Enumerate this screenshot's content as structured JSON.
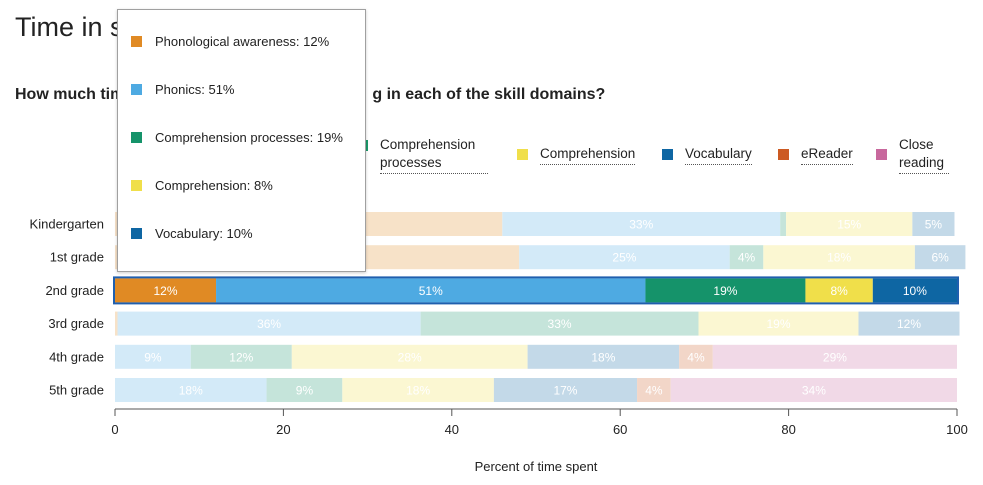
{
  "page": {
    "title": "Time in s",
    "question": "How much tim",
    "question_tail": "g in each of the skill domains?"
  },
  "legend": [
    {
      "label": "Comprehension processes",
      "color": "#1b9a6b"
    },
    {
      "label": "Comprehension",
      "color": "#f0df4a"
    },
    {
      "label": "Vocabulary",
      "color": "#0e66a3"
    },
    {
      "label": "eReader",
      "color": "#cc5a22"
    },
    {
      "label": "Close reading",
      "color": "#c8689d"
    }
  ],
  "tooltip": {
    "items": [
      {
        "label": "Phonological awareness: 12%",
        "color": "#e08a24"
      },
      {
        "label": "Phonics: 51%",
        "color": "#4eaae2"
      },
      {
        "label": "Comprehension processes: 19%",
        "color": "#15936a"
      },
      {
        "label": "Comprehension: 8%",
        "color": "#f0df4a"
      },
      {
        "label": "Vocabulary: 10%",
        "color": "#0e66a3"
      }
    ]
  },
  "chart_data": {
    "type": "bar",
    "orientation": "horizontal",
    "stacked": true,
    "xlabel": "Percent of time spent",
    "xlim": [
      0,
      100
    ],
    "xticks": [
      0,
      20,
      40,
      60,
      80,
      100
    ],
    "highlighted_category": "2nd grade",
    "categories": [
      "Kindergarten",
      "1st grade",
      "2nd grade",
      "3rd grade",
      "4th grade",
      "5th grade"
    ],
    "series": [
      {
        "name": "Phonological awareness",
        "color": "#e08a24",
        "values": [
          46,
          48,
          12,
          0.3,
          0,
          0
        ]
      },
      {
        "name": "Phonics",
        "color": "#4eaae2",
        "values": [
          33,
          25,
          51,
          36,
          9,
          18
        ]
      },
      {
        "name": "Comprehension processes",
        "color": "#15936a",
        "values": [
          0.7,
          4,
          19,
          33,
          12,
          9
        ]
      },
      {
        "name": "Comprehension",
        "color": "#f0df4a",
        "values": [
          15,
          18,
          8,
          19,
          28,
          18
        ]
      },
      {
        "name": "Vocabulary",
        "color": "#0e66a3",
        "values": [
          5,
          6,
          10,
          12,
          18,
          17
        ]
      },
      {
        "name": "eReader",
        "color": "#cc5a22",
        "values": [
          0,
          0,
          0,
          0,
          4,
          4
        ]
      },
      {
        "name": "Close reading",
        "color": "#c8689d",
        "values": [
          0,
          0,
          0,
          0,
          29,
          34
        ]
      }
    ],
    "data_labels": [
      [
        "",
        "33%",
        "",
        "15%",
        "5%",
        "",
        ""
      ],
      [
        "",
        "25%",
        "4%",
        "18%",
        "6%",
        "",
        ""
      ],
      [
        "12%",
        "51%",
        "19%",
        "8%",
        "10%",
        "",
        ""
      ],
      [
        "",
        "36%",
        "33%",
        "19%",
        "12%",
        "",
        ""
      ],
      [
        "",
        "9%",
        "12%",
        "28%",
        "18%",
        "4%",
        "29%"
      ],
      [
        "",
        "18%",
        "9%",
        "18%",
        "17%",
        "4%",
        "34%"
      ]
    ]
  }
}
